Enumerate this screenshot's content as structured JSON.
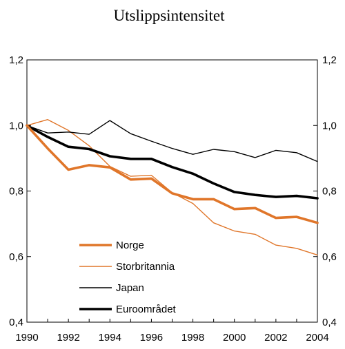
{
  "chart_data": {
    "type": "line",
    "title": "Utslippsintensitet",
    "xlabel": "",
    "ylabel": "",
    "x": [
      1990,
      1991,
      1992,
      1993,
      1994,
      1995,
      1996,
      1997,
      1998,
      1999,
      2000,
      2001,
      2002,
      2003,
      2004
    ],
    "xlim": [
      1990,
      2004
    ],
    "ylim": [
      0.4,
      1.2
    ],
    "x_ticks": [
      "1990",
      "1992",
      "1994",
      "1996",
      "1998",
      "2000",
      "2002",
      "2004"
    ],
    "y_ticks": [
      "0,4",
      "0,6",
      "0,8",
      "1,0",
      "1,2"
    ],
    "y_tick_values": [
      0.4,
      0.6,
      0.8,
      1.0,
      1.2
    ],
    "legend_position": "bottom-left inside plot",
    "grid": false,
    "series": [
      {
        "name": "Norge",
        "color": "#E0762A",
        "width": "thick",
        "values": [
          1.0,
          0.93,
          0.865,
          0.879,
          0.872,
          0.835,
          0.838,
          0.793,
          0.775,
          0.775,
          0.745,
          0.748,
          0.718,
          0.721,
          0.703
        ]
      },
      {
        "name": "Storbritannia",
        "color": "#E0762A",
        "width": "thin",
        "values": [
          1.0,
          1.018,
          0.985,
          0.938,
          0.875,
          0.845,
          0.848,
          0.795,
          0.762,
          0.703,
          0.678,
          0.668,
          0.635,
          0.625,
          0.605
        ]
      },
      {
        "name": "Japan",
        "color": "#000000",
        "width": "thin",
        "values": [
          1.0,
          0.977,
          0.98,
          0.973,
          1.015,
          0.975,
          0.952,
          0.93,
          0.912,
          0.927,
          0.92,
          0.902,
          0.924,
          0.917,
          0.89
        ]
      },
      {
        "name": "Euroområdet",
        "color": "#000000",
        "width": "thick",
        "values": [
          1.0,
          0.965,
          0.935,
          0.928,
          0.906,
          0.898,
          0.898,
          0.873,
          0.853,
          0.823,
          0.797,
          0.788,
          0.782,
          0.785,
          0.778
        ]
      }
    ]
  }
}
